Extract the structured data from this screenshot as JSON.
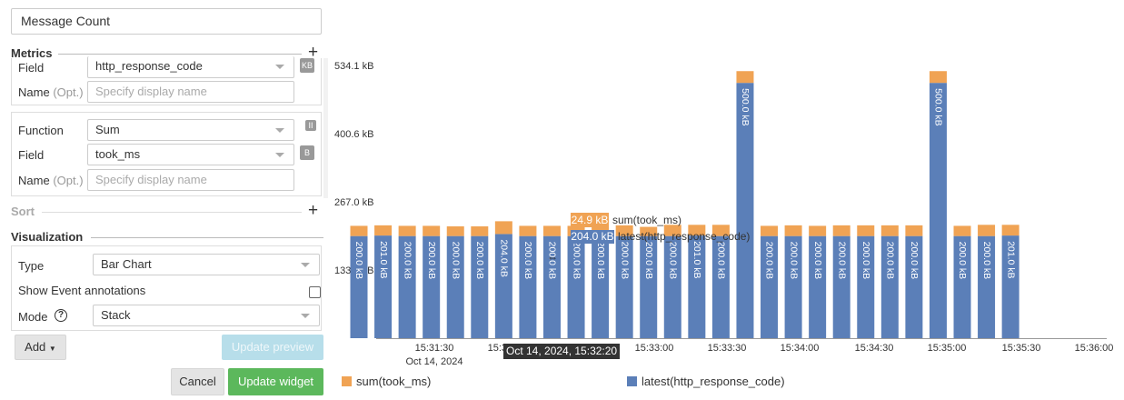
{
  "editor": {
    "title_value": "Message Count",
    "metrics": {
      "heading": "Metrics",
      "field_label": "Field",
      "field_value": "http_response_code",
      "field_badge": "KB",
      "name_label": "Name",
      "name_opt": "(Opt.)",
      "name_placeholder": "Specify display name",
      "function_label": "Function",
      "function_value": "Sum",
      "function_badge": "II",
      "field2_value": "took_ms",
      "field2_badge": "B"
    },
    "sort_heading": "Sort",
    "visualization": {
      "heading": "Visualization",
      "type_label": "Type",
      "type_value": "Bar Chart",
      "annotations_label": "Show Event annotations",
      "mode_label": "Mode",
      "mode_value": "Stack",
      "help_glyph": "?"
    },
    "buttons": {
      "add": "Add",
      "update_preview": "Update preview",
      "cancel": "Cancel",
      "update_widget": "Update widget"
    }
  },
  "colors": {
    "sum_series": "#f0a354",
    "latest_series": "#5b7fb8",
    "primary_button": "#5cb85c"
  },
  "chart_data": {
    "type": "bar",
    "stacked": true,
    "y_ticks": [
      "534.1 kB",
      "400.6 kB",
      "267.0 kB",
      "133.5 kB"
    ],
    "ylim": [
      0,
      534.1
    ],
    "x_ticks": [
      "15:31:30",
      "15:32:00",
      "15:32:30",
      "15:33:00",
      "15:33:30",
      "15:34:00",
      "15:34:30",
      "15:35:00",
      "15:35:30",
      "15:36:00"
    ],
    "x_date": "Oct 14, 2024",
    "legend": [
      "sum(took_ms)",
      "latest(http_response_code)"
    ],
    "series": [
      {
        "name": "latest(http_response_code)",
        "values": [
          200,
          201,
          200,
          200,
          200,
          200,
          204,
          200,
          200,
          200,
          200,
          200,
          200,
          200,
          201,
          200,
          500,
          200,
          200,
          200,
          200,
          200,
          200,
          200,
          500,
          200,
          200,
          201
        ],
        "labels": [
          "200.0 kB",
          "201.0 kB",
          "200.0 kB",
          "200.0 kB",
          "200.0 kB",
          "200.0 kB",
          "204.0 kB",
          "200.0 kB",
          "200.0 kB",
          "200.0 kB",
          "200.0 kB",
          "200.0 kB",
          "200.0 kB",
          "200.0 kB",
          "201.0 kB",
          "200.0 kB",
          "500.0 kB",
          "200.0 kB",
          "200.0 kB",
          "200.0 kB",
          "200.0 kB",
          "200.0 kB",
          "200.0 kB",
          "200.0 kB",
          "500.0 kB",
          "200.0 kB",
          "200.0 kB",
          "201.0 kB"
        ]
      },
      {
        "name": "sum(took_ms)",
        "values": [
          20,
          20,
          20,
          20,
          19,
          19,
          25,
          20,
          20,
          20,
          20,
          21,
          18,
          22,
          21,
          22,
          23,
          20,
          21,
          20,
          21,
          21,
          21,
          21,
          23,
          20,
          22,
          21
        ]
      }
    ],
    "tooltip": {
      "sum_value": "24.9 kB",
      "sum_name": "sum(took_ms)",
      "latest_value": "204.0 kB",
      "latest_name": "latest(http_response_code)",
      "time": "Oct 14, 2024, 15:32:20"
    }
  }
}
